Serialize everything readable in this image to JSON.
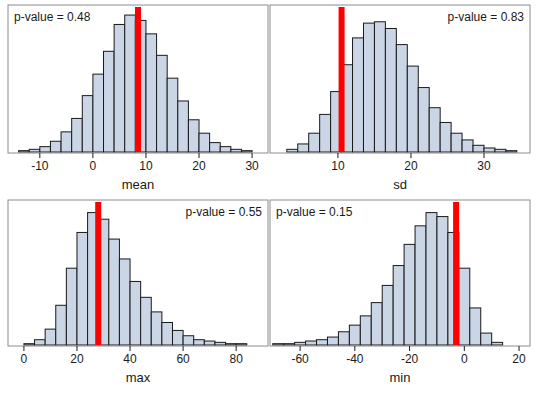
{
  "chart_data": [
    {
      "type": "histogram",
      "xlabel": "mean",
      "annotation": "p-value = 0.48",
      "legend": "upper left",
      "color": "#cad5e5",
      "bins": [
        -14,
        -12,
        -10,
        -8,
        -6,
        -4,
        -2,
        0,
        2,
        4,
        6,
        8,
        10,
        12,
        14,
        16,
        18,
        20,
        22,
        24,
        26,
        28,
        30
      ],
      "counts": [
        1,
        2,
        4,
        8,
        15,
        25,
        42,
        58,
        75,
        95,
        102,
        98,
        88,
        72,
        55,
        38,
        24,
        14,
        7,
        4,
        2,
        1
      ],
      "observed": 8.5,
      "xlim": [
        -16,
        33
      ],
      "ylim": [
        0,
        108
      ],
      "xticks": [
        -10,
        0,
        10,
        20,
        30
      ],
      "tick_labels": "x"
    },
    {
      "type": "histogram",
      "xlabel": "sd",
      "annotation": "p-value = 0.83",
      "legend": "upper right",
      "color": "#cad5e5",
      "bins": [
        3,
        4.5,
        6,
        7.5,
        9,
        10.5,
        12,
        13.5,
        15,
        16.5,
        18,
        19.5,
        21,
        22.5,
        24,
        25.5,
        27,
        28.5,
        30,
        31.5,
        33,
        34.5
      ],
      "counts": [
        2,
        6,
        14,
        28,
        45,
        65,
        85,
        96,
        97,
        92,
        80,
        64,
        48,
        33,
        22,
        14,
        9,
        5,
        3,
        2,
        1
      ],
      "observed": 10.5,
      "xlim": [
        0.7,
        36.3
      ],
      "ylim": [
        0,
        108
      ],
      "xticks": [
        10,
        20,
        30
      ],
      "tick_labels": "x"
    },
    {
      "type": "histogram",
      "xlabel": "max",
      "annotation": "p-value = 0.55",
      "legend": "upper right",
      "color": "#cad5e5",
      "bins": [
        0,
        4,
        8,
        12,
        16,
        20,
        24,
        28,
        32,
        36,
        40,
        44,
        48,
        52,
        56,
        60,
        64,
        68,
        72,
        76,
        80,
        84
      ],
      "counts": [
        1,
        4,
        12,
        30,
        58,
        85,
        100,
        95,
        80,
        65,
        48,
        36,
        25,
        17,
        11,
        7,
        4,
        3,
        2,
        1,
        1
      ],
      "observed": 28,
      "xlim": [
        -6,
        92
      ],
      "ylim": [
        0,
        108
      ],
      "xticks": [
        0,
        20,
        40,
        60,
        80
      ],
      "tick_labels": "x"
    },
    {
      "type": "histogram",
      "xlabel": "min",
      "annotation": "p-value = 0.15",
      "legend": "upper left",
      "color": "#cad5e5",
      "bins": [
        -70,
        -66,
        -62,
        -58,
        -54,
        -50,
        -46,
        -42,
        -38,
        -34,
        -30,
        -26,
        -22,
        -18,
        -14,
        -10,
        -6,
        -2,
        2,
        6,
        10,
        14
      ],
      "counts": [
        1,
        1,
        2,
        3,
        4,
        6,
        10,
        15,
        22,
        32,
        45,
        60,
        76,
        90,
        100,
        97,
        85,
        58,
        28,
        9,
        2
      ],
      "observed": -3,
      "xlim": [
        -71,
        24
      ],
      "ylim": [
        0,
        108
      ],
      "xticks": [
        -60,
        -40,
        -20,
        0,
        20
      ],
      "tick_labels": "x"
    }
  ]
}
